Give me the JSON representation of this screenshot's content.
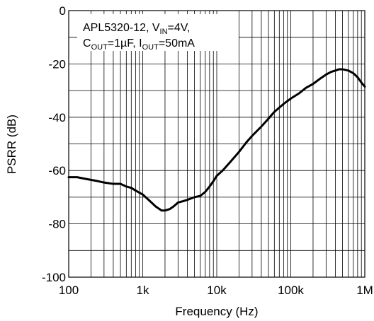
{
  "chart_data": {
    "type": "line",
    "xscale": "log",
    "xlim": [
      100,
      1000000
    ],
    "ylim": [
      -100,
      0
    ],
    "xlabel": "Frequency (Hz)",
    "ylabel": "PSRR (dB)",
    "grid": true,
    "x_ticks": [
      "100",
      "1k",
      "10k",
      "100k",
      "1M"
    ],
    "y_ticks": [
      "0",
      "-20",
      "-40",
      "-60",
      "-80",
      "-100"
    ],
    "annotation": {
      "line1_prefix": "APL5320-12, V",
      "line1_sub": "IN",
      "line1_suffix": "=4V,",
      "line2_a": "C",
      "line2_sub_a": "OUT",
      "line2_b": "=1µF, I",
      "line2_sub_b": "OUT",
      "line2_c": "=50mA"
    },
    "series": [
      {
        "x": [
          100,
          130,
          160,
          200,
          250,
          300,
          400,
          500,
          600,
          700,
          800,
          1000,
          1200,
          1500,
          1800,
          2000,
          2300,
          2600,
          3000,
          3500,
          4000,
          5000,
          6000,
          7000,
          8000,
          9000,
          10000,
          12000,
          15000,
          20000,
          25000,
          30000,
          40000,
          50000,
          60000,
          80000,
          100000,
          130000,
          160000,
          200000,
          250000,
          300000,
          350000,
          400000,
          450000,
          500000,
          600000,
          700000,
          800000,
          900000,
          1000000
        ],
        "y": [
          -62.5,
          -62.5,
          -63,
          -63.5,
          -64,
          -64.5,
          -65,
          -65,
          -66,
          -66.5,
          -67.5,
          -69,
          -71,
          -73.5,
          -75,
          -75,
          -74.5,
          -73.5,
          -72,
          -71.5,
          -71,
          -70,
          -69.5,
          -68,
          -66,
          -64,
          -62,
          -60,
          -57,
          -53,
          -49.5,
          -47,
          -43.5,
          -40.5,
          -38,
          -35,
          -33,
          -31,
          -29,
          -27.5,
          -25.5,
          -24,
          -23,
          -22.5,
          -22,
          -22,
          -22.5,
          -23.5,
          -25,
          -27,
          -28.5
        ]
      }
    ]
  }
}
